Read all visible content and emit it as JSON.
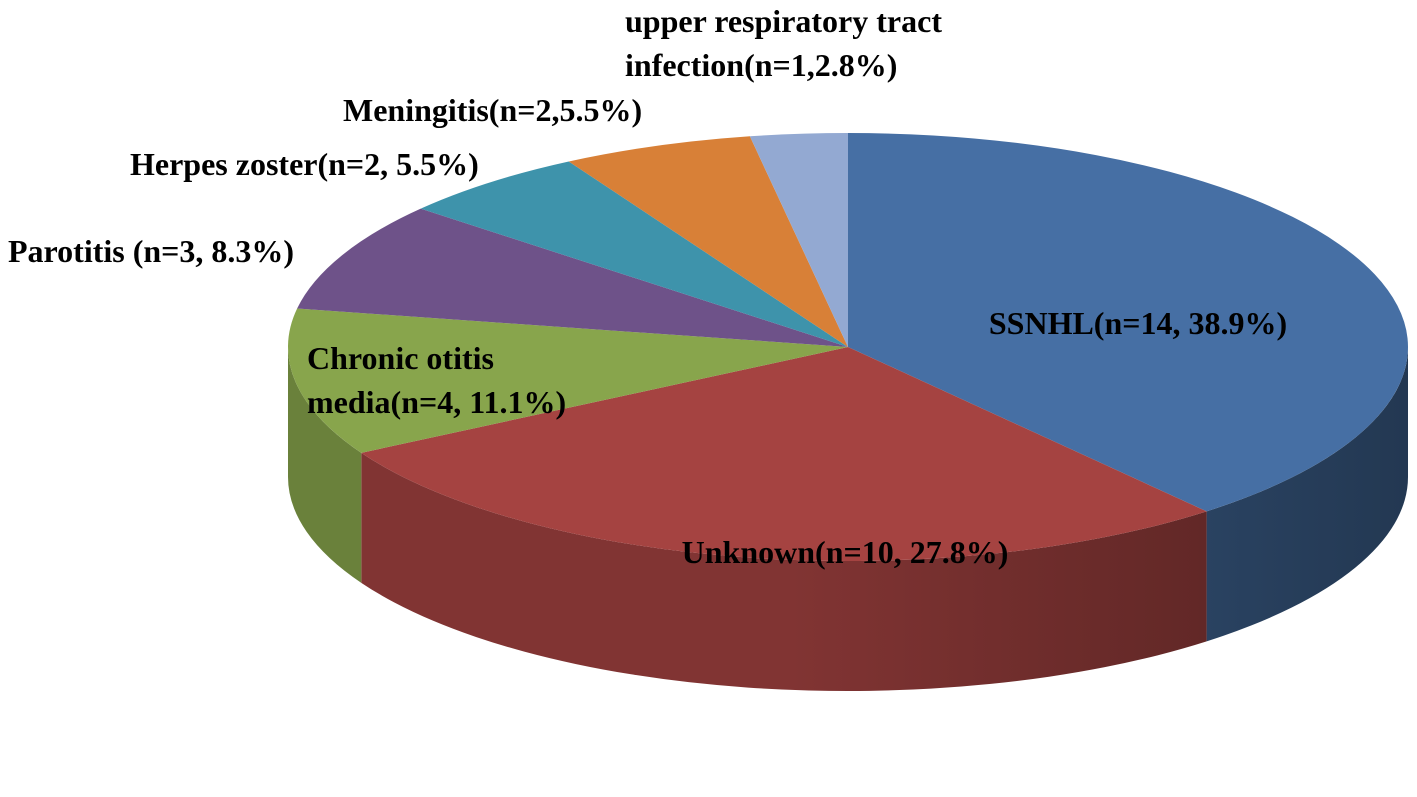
{
  "chart_data": {
    "type": "pie",
    "style": "3d",
    "title": "",
    "legend": "none",
    "slices": [
      {
        "label_lines": [
          "SSNHL(n=14, 38.9%)"
        ],
        "n": 14,
        "percent": 38.9,
        "color": "#466fa4"
      },
      {
        "label_lines": [
          "Unknown(n=10, 27.8%)"
        ],
        "n": 10,
        "percent": 27.8,
        "color": "#a54341"
      },
      {
        "label_lines": [
          "Chronic otitis",
          "media(n=4, 11.1%)"
        ],
        "n": 4,
        "percent": 11.1,
        "color": "#88a54c"
      },
      {
        "label_lines": [
          "Parotitis (n=3, 8.3%)"
        ],
        "n": 3,
        "percent": 8.3,
        "color": "#6e5289"
      },
      {
        "label_lines": [
          "Herpes zoster(n=2, 5.5%)"
        ],
        "n": 2,
        "percent": 5.5,
        "color": "#3e93ab"
      },
      {
        "label_lines": [
          "Meningitis(n=2,5.5%)"
        ],
        "n": 2,
        "percent": 5.5,
        "color": "#d88037"
      },
      {
        "label_lines": [
          "upper respiratory tract",
          "infection(n=1,2.8%)"
        ],
        "n": 1,
        "percent": 2.8,
        "color": "#93a9d2"
      }
    ]
  }
}
